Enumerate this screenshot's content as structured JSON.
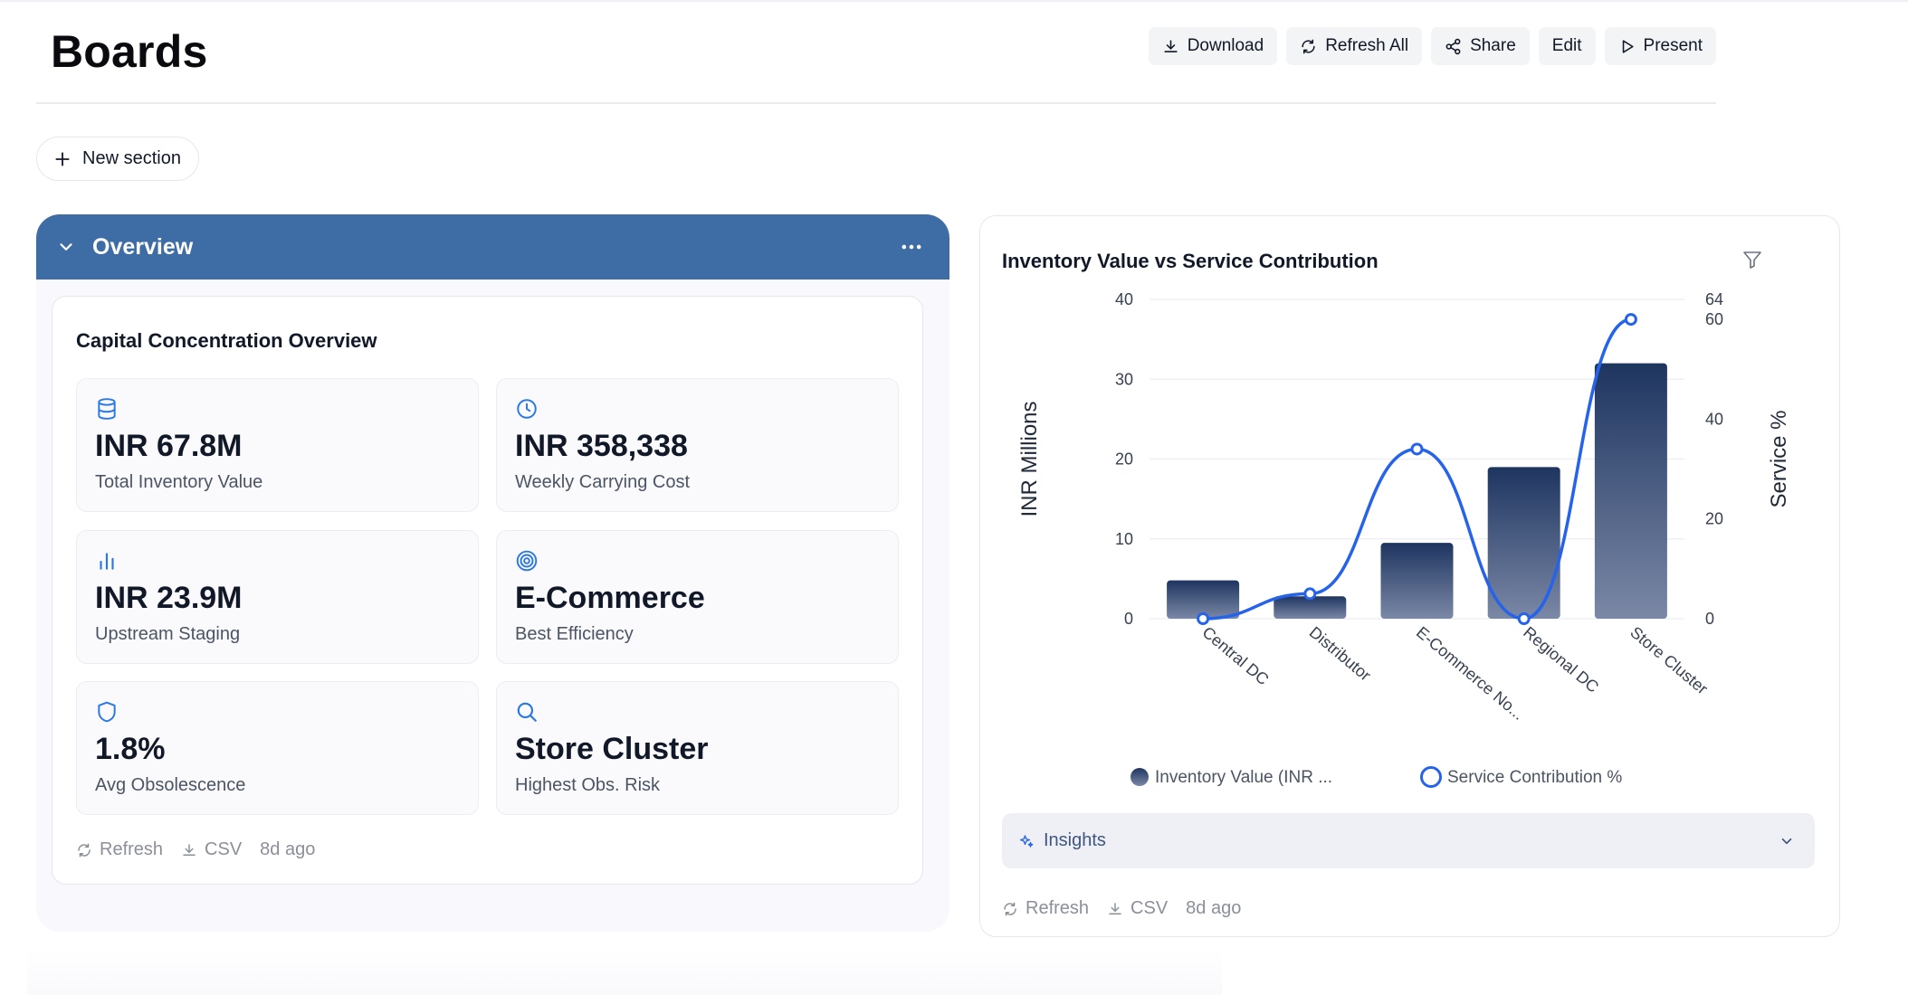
{
  "page": {
    "title": "Boards"
  },
  "toolbar": {
    "download": "Download",
    "refresh_all": "Refresh All",
    "share": "Share",
    "edit": "Edit",
    "present": "Present"
  },
  "new_section": "New section",
  "section": {
    "title": "Overview",
    "card": {
      "title": "Capital Concentration Overview",
      "tiles": [
        {
          "icon": "database-icon",
          "value": "INR 67.8M",
          "label": "Total Inventory Value"
        },
        {
          "icon": "clock-icon",
          "value": "INR 358,338",
          "label": "Weekly Carrying Cost"
        },
        {
          "icon": "bar-chart-icon",
          "value": "INR 23.9M",
          "label": "Upstream Staging"
        },
        {
          "icon": "target-icon",
          "value": "E-Commerce",
          "label": "Best Efficiency"
        },
        {
          "icon": "shield-icon",
          "value": "1.8%",
          "label": "Avg Obsolescence"
        },
        {
          "icon": "search-icon",
          "value": "Store Cluster",
          "label": "Highest Obs. Risk"
        }
      ],
      "footer": {
        "refresh": "Refresh",
        "csv": "CSV",
        "age": "8d ago"
      }
    }
  },
  "chart_card": {
    "title": "Inventory Value vs Service Contribution",
    "insights": "Insights",
    "footer": {
      "refresh": "Refresh",
      "csv": "CSV",
      "age": "8d ago"
    }
  },
  "chart_data": {
    "type": "bar",
    "title": "Inventory Value vs Service Contribution",
    "categories": [
      "Central DC",
      "Distributor",
      "E-Commerce No...",
      "Regional DC",
      "Store Cluster"
    ],
    "series": [
      {
        "name": "Inventory Value (INR ...",
        "type": "bar",
        "axis": "left",
        "values": [
          4.8,
          2.8,
          9.5,
          19,
          32
        ]
      },
      {
        "name": "Service Contribution %",
        "type": "line",
        "axis": "right",
        "values": [
          0,
          5,
          34,
          0,
          60
        ]
      }
    ],
    "ylabel": "INR Millions",
    "y2label": "Service %",
    "ylim": [
      0,
      40
    ],
    "yticks": [
      0,
      10,
      20,
      30,
      40
    ],
    "y2lim": [
      0,
      64
    ],
    "y2ticks": [
      0,
      20,
      40,
      60,
      64
    ],
    "grid": true,
    "legend": "bottom",
    "colors": {
      "bar_top": "#1e3560",
      "bar_bottom": "#7b88a6",
      "line": "#2563eb"
    }
  },
  "colors": {
    "section_header": "#3e6ca5",
    "accent_icon": "#2a78e4"
  }
}
